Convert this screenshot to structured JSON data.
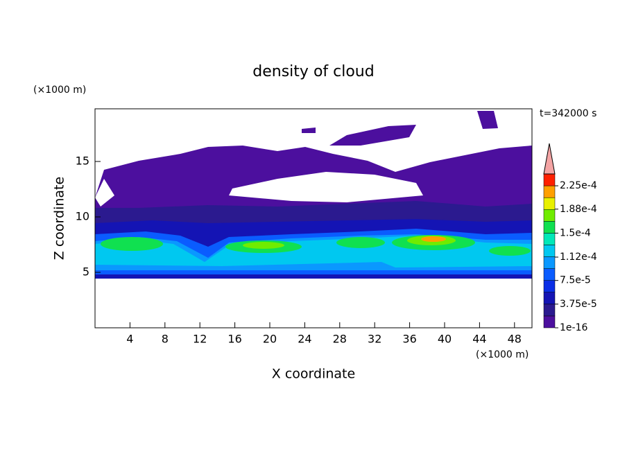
{
  "chart_data": {
    "type": "contour",
    "title": "density of cloud",
    "xlabel": "X coordinate",
    "ylabel": "Z coordinate",
    "xunit": "(×1000 m)",
    "yunit": "(×1000 m)",
    "annotation": "t=342000 s",
    "xlim": [
      0,
      50
    ],
    "ylim": [
      0,
      19.75
    ],
    "xticks": [
      4,
      8,
      12,
      16,
      20,
      24,
      28,
      32,
      36,
      40,
      44,
      48
    ],
    "yticks": [
      5,
      10,
      15
    ],
    "colorbar": {
      "clim": [
        1e-16,
        0.00024375
      ],
      "colors": [
        "#4c0f9e",
        "#2b1a8f",
        "#1414b4",
        "#0a2ee6",
        "#0a5cff",
        "#0a98ff",
        "#00c8f0",
        "#00e8b8",
        "#10e050",
        "#70ec00",
        "#e8f000",
        "#ffa000",
        "#ff2000"
      ],
      "extend_color": "#f4a4a4",
      "ticks": [
        {
          "value": 1e-16,
          "label": "1e-16"
        },
        {
          "value": 3.75e-05,
          "label": "3.75e-5"
        },
        {
          "value": 7.5e-05,
          "label": "7.5e-5"
        },
        {
          "value": 0.000112,
          "label": "1.12e-4"
        },
        {
          "value": 0.00015,
          "label": "1.5e-4"
        },
        {
          "value": 0.000188,
          "label": "1.88e-4"
        },
        {
          "value": 0.000225,
          "label": "2.25e-4"
        }
      ]
    }
  }
}
